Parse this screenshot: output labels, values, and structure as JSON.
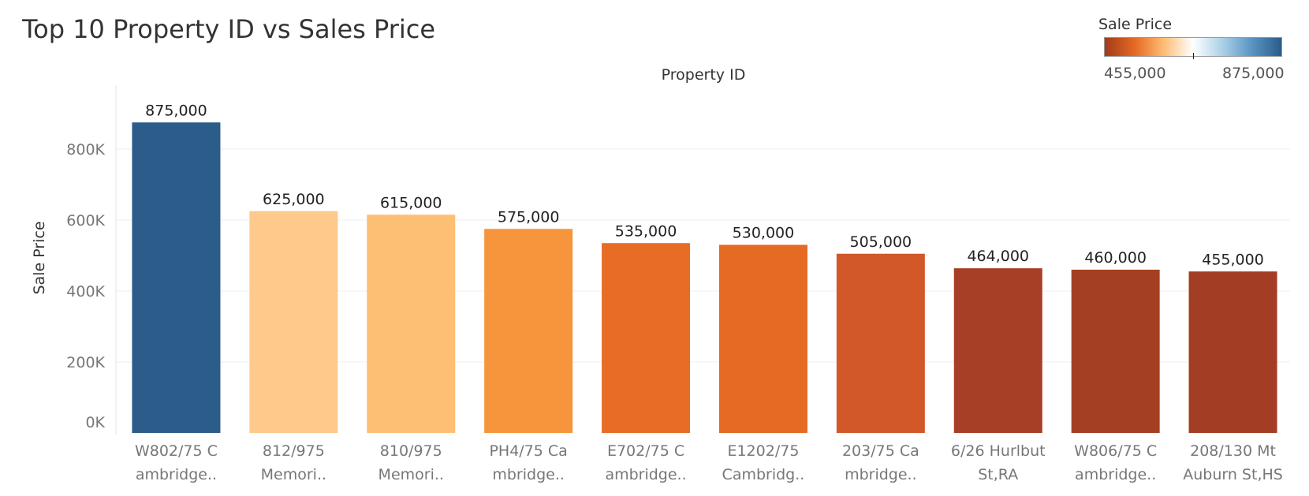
{
  "chart_data": {
    "type": "bar",
    "title": "Top 10 Property ID vs Sales Price",
    "xlabel": "Property ID",
    "ylabel": "Sale Price",
    "categories": [
      [
        "W802/75 C",
        "ambridge.."
      ],
      [
        "812/975",
        "Memori.."
      ],
      [
        "810/975",
        "Memori.."
      ],
      [
        "PH4/75 Ca",
        "mbridge.."
      ],
      [
        "E702/75 C",
        "ambridge.."
      ],
      [
        "E1202/75",
        "Cambridg.."
      ],
      [
        "203/75 Ca",
        "mbridge.."
      ],
      [
        "6/26 Hurlbut",
        "St,RA"
      ],
      [
        "W806/75 C",
        "ambridge.."
      ],
      [
        "208/130 Mt",
        "Auburn St,HS"
      ]
    ],
    "values": [
      875000,
      625000,
      615000,
      575000,
      535000,
      530000,
      505000,
      464000,
      460000,
      455000
    ],
    "value_labels": [
      "875,000",
      "625,000",
      "615,000",
      "575,000",
      "535,000",
      "530,000",
      "505,000",
      "464,000",
      "460,000",
      "455,000"
    ],
    "bar_colors": [
      "#2c5c89",
      "#fdca8c",
      "#fdbf73",
      "#f6953c",
      "#e76c25",
      "#e56a23",
      "#d2582a",
      "#a63f25",
      "#a43f24",
      "#a33e24"
    ],
    "yticks": [
      0,
      200000,
      400000,
      600000,
      800000
    ],
    "ytick_labels": [
      "0K",
      "200K",
      "400K",
      "600K",
      "800K"
    ],
    "ylim": [
      0,
      980000
    ],
    "grid": true,
    "legend": {
      "title": "Sale Price",
      "min_label": "455,000",
      "max_label": "875,000",
      "placement": "top-right",
      "gradient_colors": [
        "#a23b1c",
        "#e56a23",
        "#fdbb73",
        "#ffffff",
        "#a9cfe6",
        "#5a95c4",
        "#2c5c89"
      ]
    }
  }
}
